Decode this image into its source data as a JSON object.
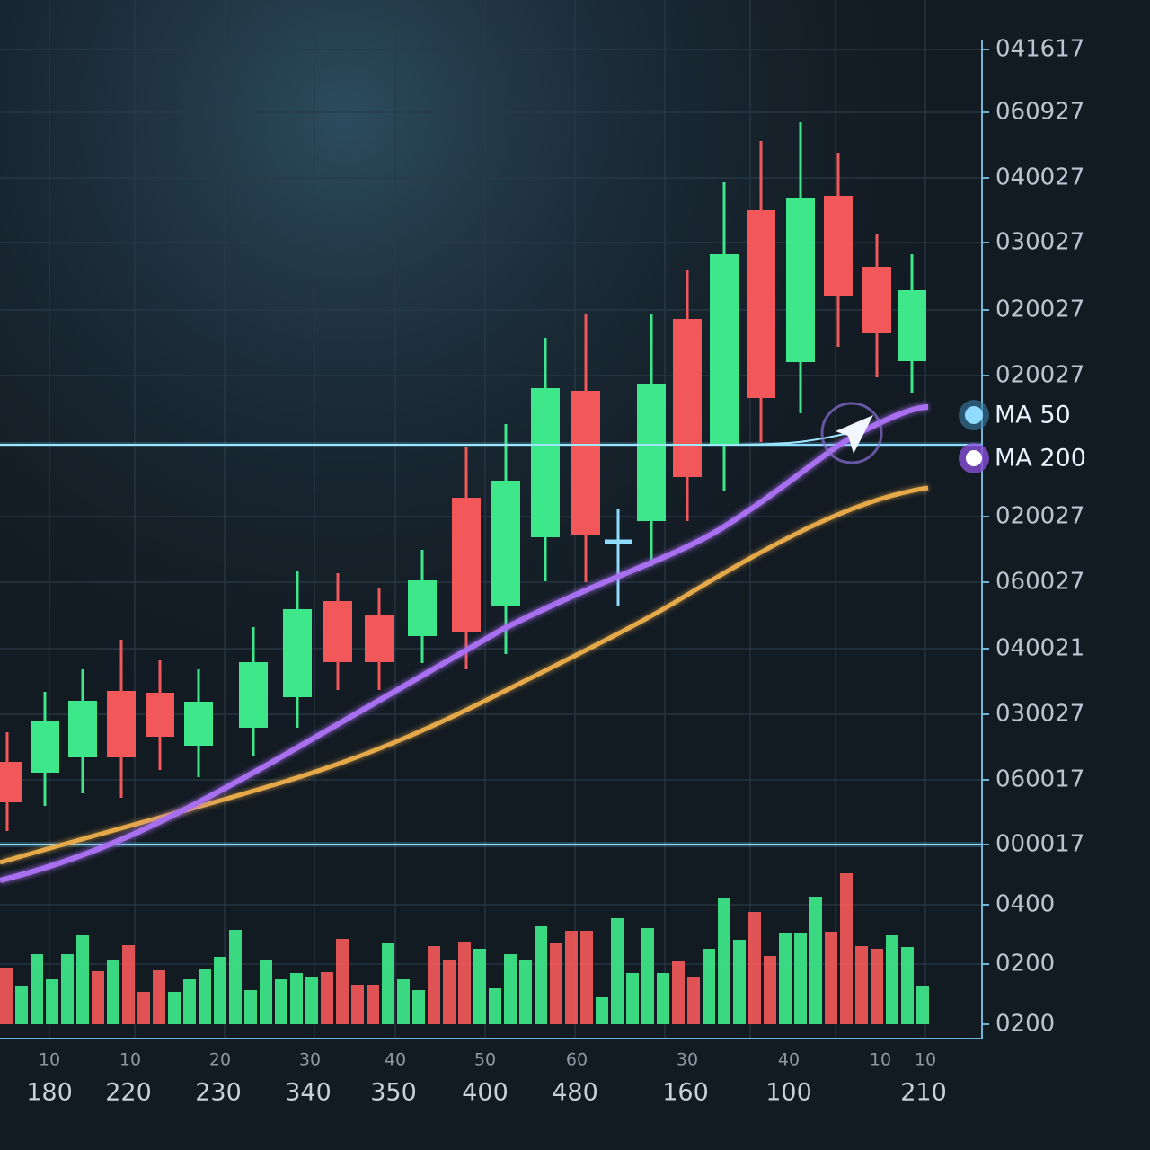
{
  "price_axis_labels": [
    "041617",
    "060927",
    "040027",
    "030027",
    "020027",
    "020027",
    "020027",
    "060027",
    "040021",
    "030027",
    "060017",
    "000017"
  ],
  "volume_axis_labels": [
    "0400",
    "0200",
    "0200"
  ],
  "x_minor_labels": [
    "10",
    "10",
    "20",
    "30",
    "40",
    "50",
    "60",
    "30",
    "40",
    "10",
    "10"
  ],
  "x_major_labels": [
    "180",
    "220",
    "230",
    "340",
    "350",
    "400",
    "480",
    "160",
    "100",
    "210"
  ],
  "legend": [
    "MA 50",
    "MA 200"
  ]
}
